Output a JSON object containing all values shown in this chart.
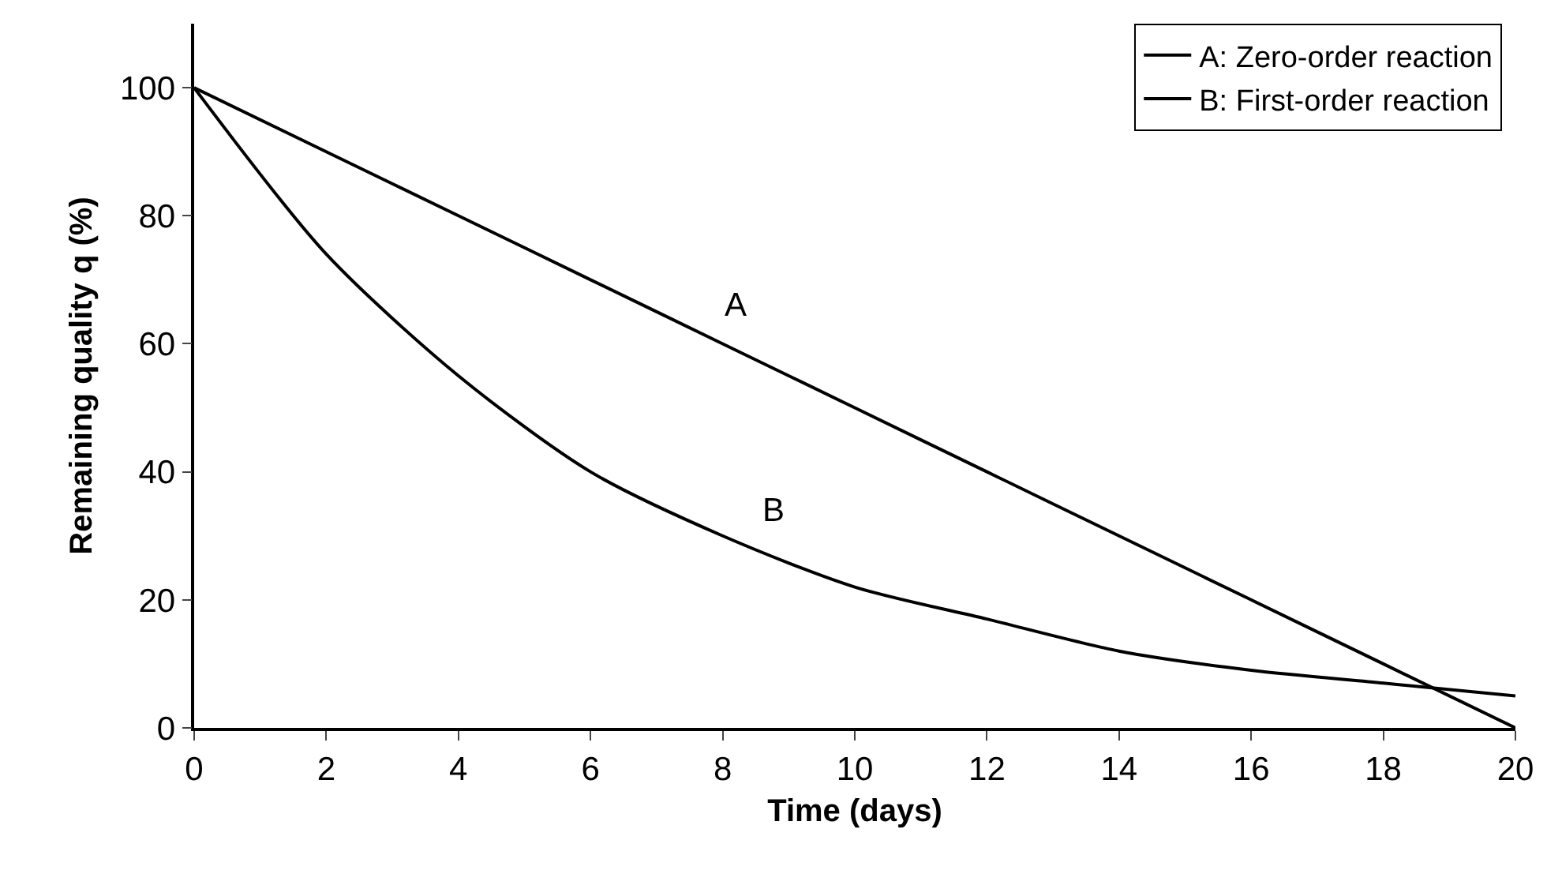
{
  "chart_data": {
    "type": "line",
    "xlabel": "Time (days)",
    "ylabel": "Remaining quality q (%)",
    "x": [
      0,
      2,
      4,
      6,
      8,
      10,
      12,
      14,
      16,
      18,
      20
    ],
    "series": [
      {
        "name": "A: Zero-order reaction",
        "color": "#000000",
        "values": [
          100,
          90,
          80,
          70,
          60,
          50,
          40,
          30,
          20,
          10,
          0
        ]
      },
      {
        "name": "B: First-order reaction",
        "color": "#000000",
        "values": [
          100,
          74,
          55,
          40,
          30,
          22,
          17,
          12,
          9,
          7,
          5
        ]
      }
    ],
    "annotations": [
      "A",
      "B"
    ],
    "xlim": [
      0,
      20
    ],
    "xticks": [
      0,
      2,
      4,
      6,
      8,
      10,
      12,
      14,
      16,
      18,
      20
    ],
    "ylim": [
      0,
      110
    ],
    "yticks": [
      0,
      20,
      40,
      60,
      80,
      100
    ],
    "grid": false,
    "legend": "top right",
    "marker": "none",
    "line_style": "solid"
  }
}
